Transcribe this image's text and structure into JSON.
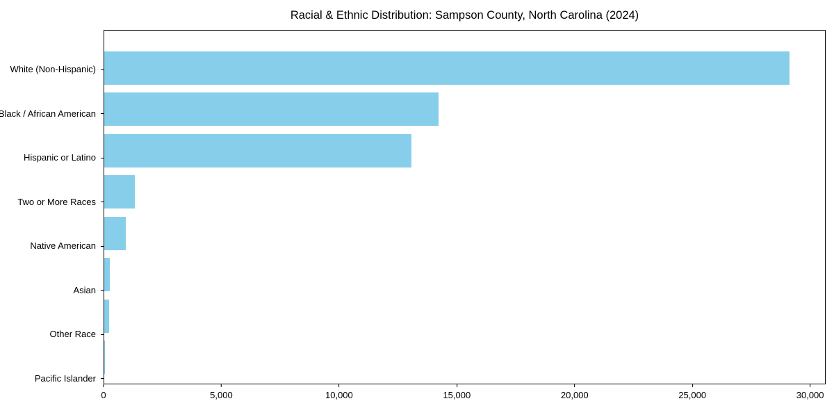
{
  "chart_data": {
    "type": "bar",
    "orientation": "horizontal",
    "title": "Racial & Ethnic Distribution: Sampson County, North Carolina (2024)",
    "xlabel": "",
    "ylabel": "",
    "categories": [
      "White (Non-Hispanic)",
      "Black / African American",
      "Hispanic or Latino",
      "Two or More Races",
      "Native American",
      "Asian",
      "Other Race",
      "Pacific Islander"
    ],
    "values": [
      29150,
      14210,
      13060,
      1310,
      930,
      250,
      200,
      25
    ],
    "xlim": [
      0,
      30660
    ],
    "xticks": [
      0,
      5000,
      10000,
      15000,
      20000,
      25000,
      30000
    ],
    "xtick_labels": [
      "0",
      "5,000",
      "10,000",
      "15,000",
      "20,000",
      "25,000",
      "30,000"
    ],
    "bar_color": "#87CEEB",
    "background_color": "#ffffff",
    "grid": false,
    "legend_position": "none"
  }
}
